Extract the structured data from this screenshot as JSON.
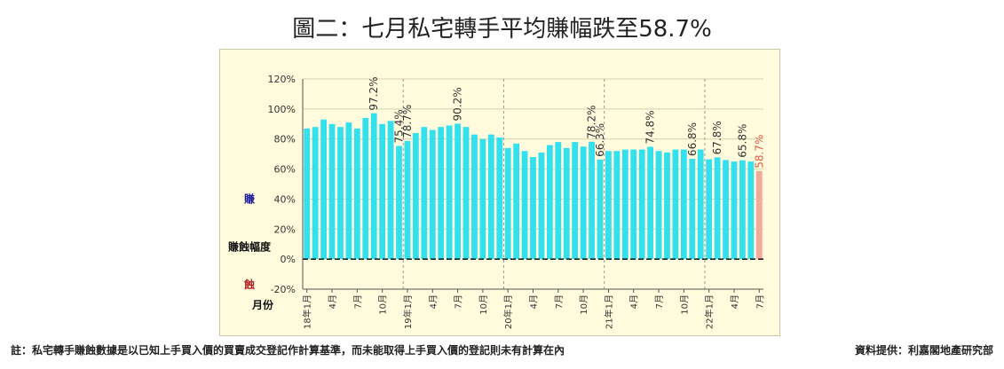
{
  "title": "圖二：七月私宅轉手平均賺幅跌至58.7%",
  "footnote": "註：私宅轉手賺蝕數據是以已知上手買入價的買賣成交登記作計算基準，而未能取得上手買入價的登記則未有計算在內",
  "source": "資料提供：利嘉閣地產研究部",
  "colors": {
    "bar": "#33e0ee",
    "last_bar": "#f4a99a",
    "label": "#333333",
    "last_label": "#e05a4a",
    "gain_text": "#1a1a9a",
    "loss_text": "#b22222"
  },
  "chart_data": {
    "type": "bar",
    "title": "圖二：七月私宅轉手平均賺幅跌至58.7%",
    "ylabel": "賺蝕幅度",
    "ylabel_gain": "賺",
    "ylabel_loss": "蝕",
    "xlabel": "月份",
    "ylim": [
      -20,
      120
    ],
    "yticks": [
      "-20%",
      "0%",
      "20%",
      "40%",
      "60%",
      "80%",
      "100%",
      "120%"
    ],
    "x_tick_labels": [
      {
        "index": 0,
        "label": "18年1月"
      },
      {
        "index": 3,
        "label": "4月"
      },
      {
        "index": 6,
        "label": "7月"
      },
      {
        "index": 9,
        "label": "10月"
      },
      {
        "index": 12,
        "label": "19年1月"
      },
      {
        "index": 15,
        "label": "4月"
      },
      {
        "index": 18,
        "label": "7月"
      },
      {
        "index": 21,
        "label": "10月"
      },
      {
        "index": 24,
        "label": "20年1月"
      },
      {
        "index": 27,
        "label": "4月"
      },
      {
        "index": 30,
        "label": "7月"
      },
      {
        "index": 33,
        "label": "10月"
      },
      {
        "index": 36,
        "label": "21年1月"
      },
      {
        "index": 39,
        "label": "4月"
      },
      {
        "index": 42,
        "label": "7月"
      },
      {
        "index": 45,
        "label": "10月"
      },
      {
        "index": 48,
        "label": "22年1月"
      },
      {
        "index": 51,
        "label": "4月"
      },
      {
        "index": 54,
        "label": "7月"
      }
    ],
    "values": [
      87,
      88,
      93,
      90,
      88,
      91,
      87,
      94,
      97.2,
      90,
      92,
      75.4,
      78.7,
      84,
      88,
      86,
      88,
      89,
      90.2,
      88,
      83,
      80,
      83,
      81,
      74,
      77,
      72,
      68,
      71,
      76,
      78,
      74,
      78,
      75,
      78.2,
      66.3,
      72,
      72,
      73,
      73,
      73,
      74.8,
      72,
      71,
      73,
      73,
      66.8,
      73,
      66.5,
      67.8,
      66,
      65,
      65.8,
      65,
      58.7
    ],
    "data_labels": [
      {
        "index": 8,
        "label": "97.2%"
      },
      {
        "index": 11,
        "label": "75.4%"
      },
      {
        "index": 12,
        "label": "78.7%"
      },
      {
        "index": 18,
        "label": "90.2%"
      },
      {
        "index": 34,
        "label": "78.2%"
      },
      {
        "index": 35,
        "label": "66.3%"
      },
      {
        "index": 41,
        "label": "74.8%"
      },
      {
        "index": 46,
        "label": "66.8%"
      },
      {
        "index": 49,
        "label": "67.8%"
      },
      {
        "index": 52,
        "label": "65.8%"
      },
      {
        "index": 54,
        "label": "58.7%"
      }
    ],
    "year_dividers_after": [
      11,
      23,
      35,
      47
    ],
    "grid": true,
    "legend": "none"
  }
}
